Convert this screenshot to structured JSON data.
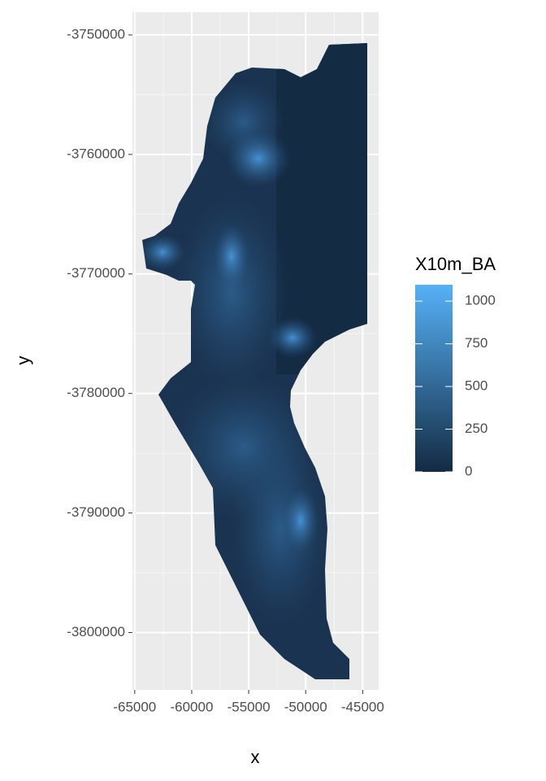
{
  "chart_data": {
    "type": "raster",
    "x_label": "x",
    "y_label": "y",
    "xlim": [
      -65200,
      -43600
    ],
    "xticks": [
      -65000,
      -60000,
      -55000,
      -50000,
      -45000
    ],
    "ylim": [
      -3804800,
      -3748100
    ],
    "yticks": [
      -3800000,
      -3790000,
      -3780000,
      -3770000,
      -3760000,
      -3750000
    ],
    "grid": true,
    "legend": {
      "title": "X10m_BA",
      "lim": [
        0,
        1096
      ],
      "ticks": [
        0,
        250,
        500,
        750,
        1000
      ],
      "colors": [
        "#132B43",
        "#56B1F7"
      ]
    }
  }
}
